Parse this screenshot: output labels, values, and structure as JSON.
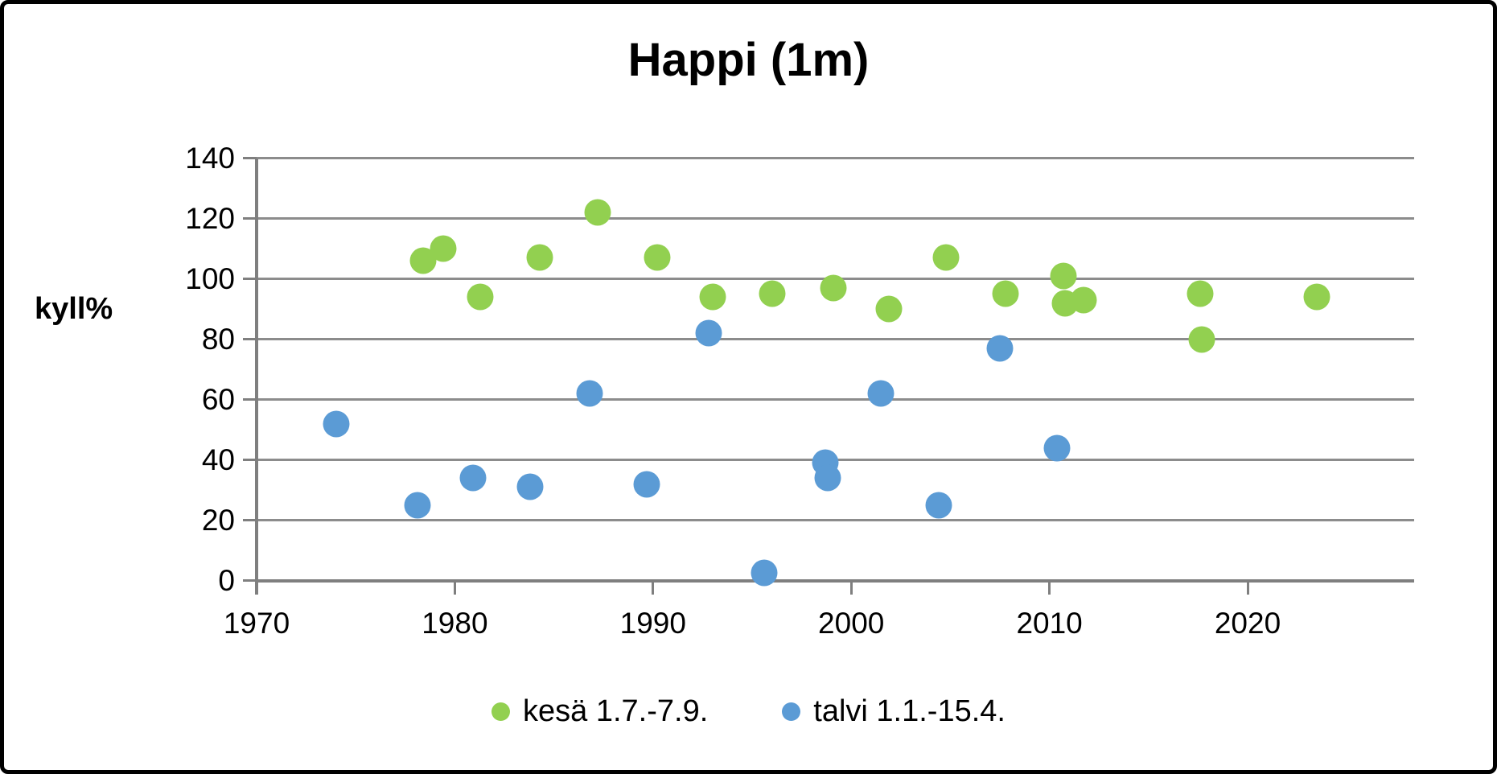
{
  "title": "Happi (1m)",
  "y_axis": {
    "label": "kyll%"
  },
  "legend": {
    "items": [
      {
        "label": "kesä 1.7.-7.9.",
        "color": "#92D050"
      },
      {
        "label": "talvi 1.1.-15.4.",
        "color": "#5B9BD5"
      }
    ]
  },
  "colors": {
    "summer": "#92D050",
    "winter": "#5B9BD5",
    "gridline": "#8c8c8c",
    "axis": "#7f7f7f",
    "text": "#000000"
  },
  "chart_data": {
    "type": "scatter",
    "title": "Happi (1m)",
    "xlabel": "",
    "ylabel": "kyll%",
    "xlim": [
      1970,
      2028.4
    ],
    "ylim": [
      0,
      140
    ],
    "x_ticks": [
      1970,
      1980,
      1990,
      2000,
      2010,
      2020
    ],
    "y_ticks": [
      0,
      20,
      40,
      60,
      80,
      100,
      120,
      140
    ],
    "grid": "horizontal",
    "legend_position": "bottom",
    "series": [
      {
        "name": "kesä 1.7.-7.9.",
        "color": "#92D050",
        "points": [
          {
            "x": 1978.4,
            "y": 106
          },
          {
            "x": 1979.4,
            "y": 110
          },
          {
            "x": 1981.3,
            "y": 94
          },
          {
            "x": 1984.3,
            "y": 107
          },
          {
            "x": 1987.2,
            "y": 122
          },
          {
            "x": 1990.2,
            "y": 107
          },
          {
            "x": 1993.0,
            "y": 94
          },
          {
            "x": 1996.0,
            "y": 95
          },
          {
            "x": 1999.1,
            "y": 97
          },
          {
            "x": 2001.9,
            "y": 90
          },
          {
            "x": 2004.8,
            "y": 107
          },
          {
            "x": 2007.8,
            "y": 95
          },
          {
            "x": 2010.7,
            "y": 101
          },
          {
            "x": 2010.8,
            "y": 92
          },
          {
            "x": 2011.7,
            "y": 93
          },
          {
            "x": 2017.6,
            "y": 95
          },
          {
            "x": 2017.7,
            "y": 80
          },
          {
            "x": 2023.5,
            "y": 94
          }
        ]
      },
      {
        "name": "talvi 1.1.-15.4.",
        "color": "#5B9BD5",
        "points": [
          {
            "x": 1974.0,
            "y": 52
          },
          {
            "x": 1978.1,
            "y": 25
          },
          {
            "x": 1980.9,
            "y": 34
          },
          {
            "x": 1983.8,
            "y": 31
          },
          {
            "x": 1986.8,
            "y": 62
          },
          {
            "x": 1989.7,
            "y": 32
          },
          {
            "x": 1992.8,
            "y": 82
          },
          {
            "x": 1995.6,
            "y": 2.5
          },
          {
            "x": 1998.7,
            "y": 39
          },
          {
            "x": 1998.8,
            "y": 34
          },
          {
            "x": 2001.5,
            "y": 62
          },
          {
            "x": 2004.4,
            "y": 25
          },
          {
            "x": 2007.5,
            "y": 77
          },
          {
            "x": 2010.4,
            "y": 44
          }
        ]
      }
    ]
  }
}
